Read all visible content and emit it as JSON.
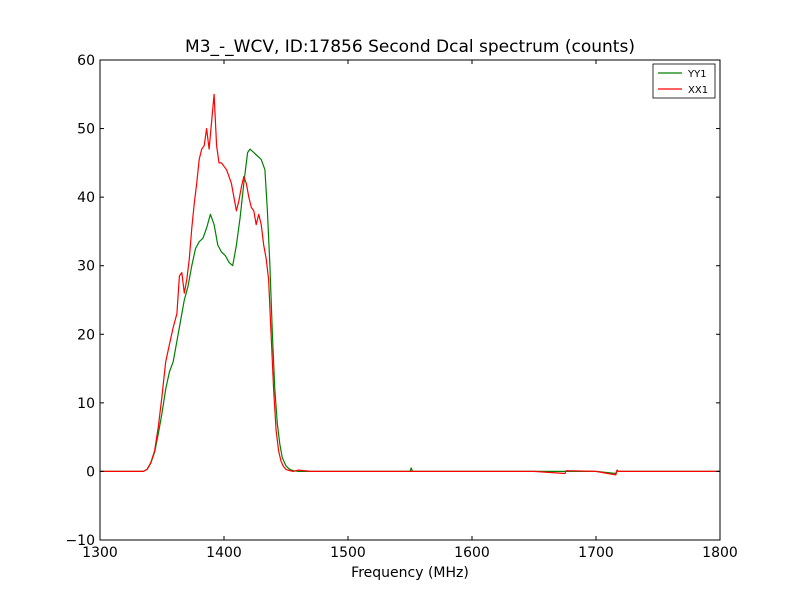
{
  "chart_data": {
    "type": "line",
    "title": "M3_-_WCV, ID:17856 Second Dcal spectrum (counts)",
    "xlabel": "Frequency (MHz)",
    "ylabel": "",
    "xlim": [
      1300,
      1800
    ],
    "ylim": [
      -10,
      60
    ],
    "xticks": [
      1300,
      1400,
      1500,
      1600,
      1700,
      1800
    ],
    "yticks": [
      -10,
      0,
      10,
      20,
      30,
      40,
      50,
      60
    ],
    "xtick_labels": [
      "1300",
      "1400",
      "1500",
      "1600",
      "1700",
      "1800"
    ],
    "ytick_labels": [
      "−10",
      "0",
      "10",
      "20",
      "30",
      "40",
      "50",
      "60"
    ],
    "grid": false,
    "legend_position": "top-right",
    "series": [
      {
        "name": "YY1",
        "color": "#008000",
        "x": [
          1300,
          1335,
          1338,
          1341,
          1344,
          1347,
          1350,
          1353,
          1356,
          1359,
          1362,
          1365,
          1368,
          1371,
          1374,
          1377,
          1380,
          1383,
          1386,
          1389,
          1392,
          1395,
          1398,
          1401,
          1404,
          1407,
          1410,
          1413,
          1416,
          1419,
          1421,
          1424,
          1427,
          1430,
          1433,
          1435,
          1437,
          1439,
          1441,
          1443,
          1445,
          1447,
          1450,
          1453,
          1456,
          1460,
          1470,
          1500,
          1550,
          1551,
          1552,
          1600,
          1650,
          1700,
          1716,
          1717,
          1718,
          1800
        ],
        "y": [
          0,
          0,
          0.3,
          1.2,
          2.8,
          5.5,
          8.5,
          12,
          14.5,
          16,
          19,
          22,
          25,
          27,
          30,
          32.5,
          33.5,
          34,
          35.5,
          37.5,
          36,
          33,
          32,
          31.5,
          30.5,
          30,
          33,
          37,
          42,
          46.5,
          47,
          46.5,
          46,
          45.5,
          44,
          38,
          30,
          20,
          12,
          7,
          4,
          2,
          0.8,
          0.3,
          0.1,
          0,
          0,
          0,
          0,
          0.5,
          0,
          0,
          0,
          0,
          -0.3,
          0.2,
          0,
          0
        ]
      },
      {
        "name": "XX1",
        "color": "#ff0000",
        "x": [
          1300,
          1335,
          1338,
          1341,
          1344,
          1347,
          1350,
          1353,
          1356,
          1359,
          1362,
          1364,
          1366,
          1368,
          1370,
          1372,
          1374,
          1376,
          1378,
          1380,
          1382,
          1384,
          1386,
          1388,
          1390,
          1392,
          1394,
          1396,
          1398,
          1400,
          1402,
          1404,
          1406,
          1408,
          1410,
          1412,
          1414,
          1416,
          1418,
          1420,
          1422,
          1424,
          1426,
          1428,
          1430,
          1432,
          1434,
          1436,
          1438,
          1440,
          1442,
          1444,
          1446,
          1448,
          1450,
          1453,
          1456,
          1460,
          1470,
          1500,
          1550,
          1600,
          1650,
          1675,
          1676,
          1700,
          1716,
          1717,
          1718,
          1800
        ],
        "y": [
          0,
          0,
          0.3,
          1.3,
          3,
          6.5,
          11,
          16,
          18.5,
          21,
          23,
          28.5,
          29,
          26,
          28,
          31,
          35.5,
          39,
          42,
          45.5,
          47,
          47.5,
          50,
          47,
          51,
          55,
          47.5,
          45,
          45,
          44.5,
          44,
          43,
          42,
          40,
          38,
          39.5,
          41.5,
          43,
          42,
          40,
          38.5,
          38,
          36,
          37.5,
          36,
          33,
          31,
          28,
          20,
          12,
          6,
          3,
          1.5,
          0.7,
          0.3,
          0.1,
          0,
          0.2,
          0,
          0,
          0,
          0,
          0,
          -0.3,
          0.1,
          0,
          -0.5,
          0.2,
          0,
          0
        ]
      }
    ]
  }
}
